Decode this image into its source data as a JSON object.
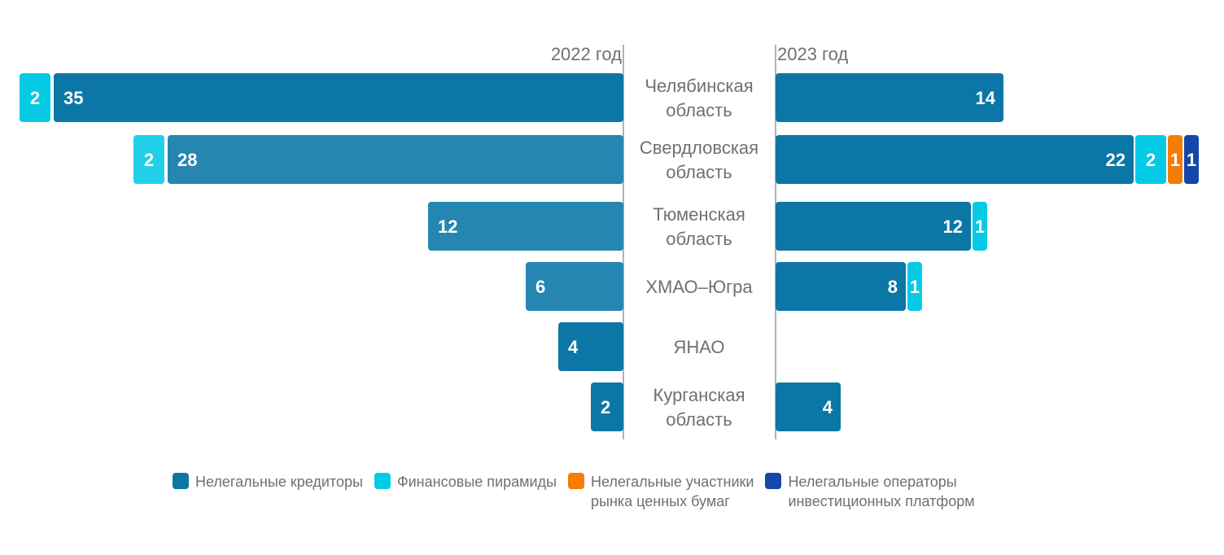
{
  "chart_data": {
    "type": "bar",
    "title": "",
    "xlabel": "",
    "ylabel": "",
    "left_label": "2022 год",
    "right_label": "2023 год",
    "categories": [
      "Челябинская\nобласть",
      "Свердловская\nобласть",
      "Тюменская\nобласть",
      "ХМАО–Югра",
      "ЯНАО",
      "Курганская\nобласть"
    ],
    "series": [
      {
        "name": "Нелегальные кредиторы",
        "color": "#0C77A6",
        "y2022": [
          35,
          28,
          12,
          6,
          4,
          2
        ],
        "y2023": [
          14,
          22,
          12,
          8,
          0,
          4
        ]
      },
      {
        "name": "Финансовые пирамиды",
        "color": "#05CAE6",
        "y2022": [
          2,
          2,
          0,
          0,
          0,
          0
        ],
        "y2023": [
          0,
          2,
          1,
          1,
          0,
          0
        ]
      },
      {
        "name": "Нелегальные участники\nрынка ценных бумаг",
        "color": "#F57C05",
        "y2022": [
          0,
          0,
          0,
          0,
          0,
          0
        ],
        "y2023": [
          0,
          1,
          0,
          0,
          0,
          0
        ]
      },
      {
        "name": "Нелегальные операторы\nинвестиционных платформ",
        "color": "#1447AA",
        "y2022": [
          0,
          0,
          0,
          0,
          0,
          0
        ],
        "y2023": [
          0,
          1,
          0,
          0,
          0,
          0
        ]
      }
    ],
    "highlight_2022_colors": {
      "creditors": "#2586B2",
      "pyramids": "#22D0EA"
    },
    "highlight_2022_rows": [
      1,
      2,
      3
    ],
    "legend_position": "bottom",
    "grid": false
  }
}
